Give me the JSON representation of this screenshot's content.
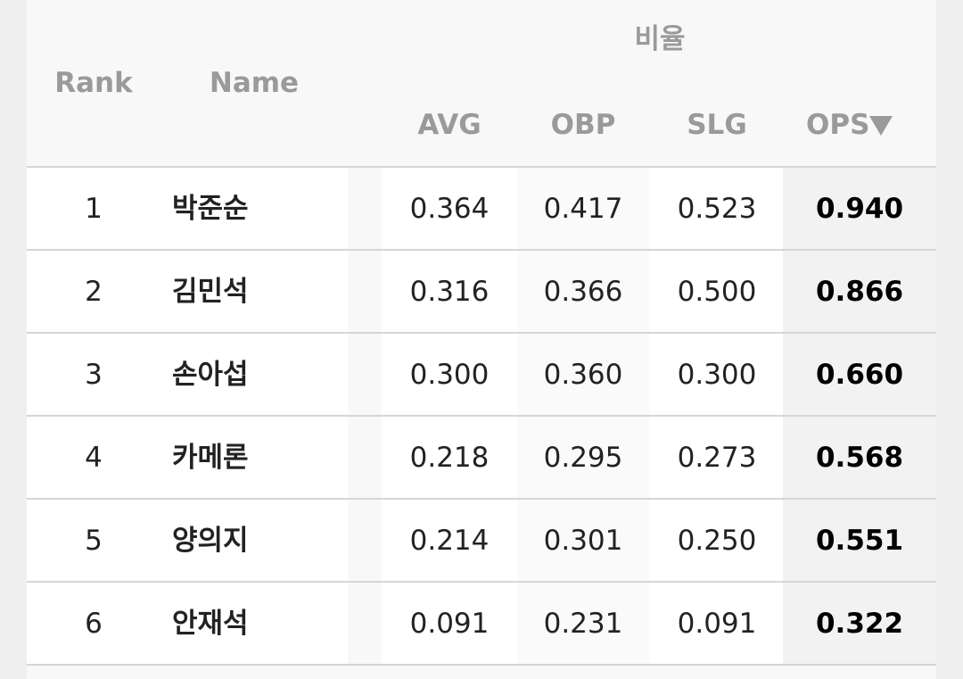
{
  "header": {
    "rank": "Rank",
    "name": "Name",
    "group": "비율",
    "columns": [
      "AVG",
      "OBP",
      "SLG",
      "OPS"
    ]
  },
  "table": {
    "rows": [
      [
        "1",
        "박준순",
        "0.364",
        "0.417",
        "0.523",
        "0.940"
      ],
      [
        "2",
        "김민석",
        "0.316",
        "0.366",
        "0.500",
        "0.866"
      ],
      [
        "3",
        "손아섭",
        "0.300",
        "0.360",
        "0.300",
        "0.660"
      ],
      [
        "4",
        "카메론",
        "0.218",
        "0.295",
        "0.273",
        "0.568"
      ],
      [
        "5",
        "양의지",
        "0.214",
        "0.301",
        "0.250",
        "0.551"
      ],
      [
        "6",
        "안재석",
        "0.091",
        "0.231",
        "0.091",
        "0.322"
      ]
    ]
  }
}
